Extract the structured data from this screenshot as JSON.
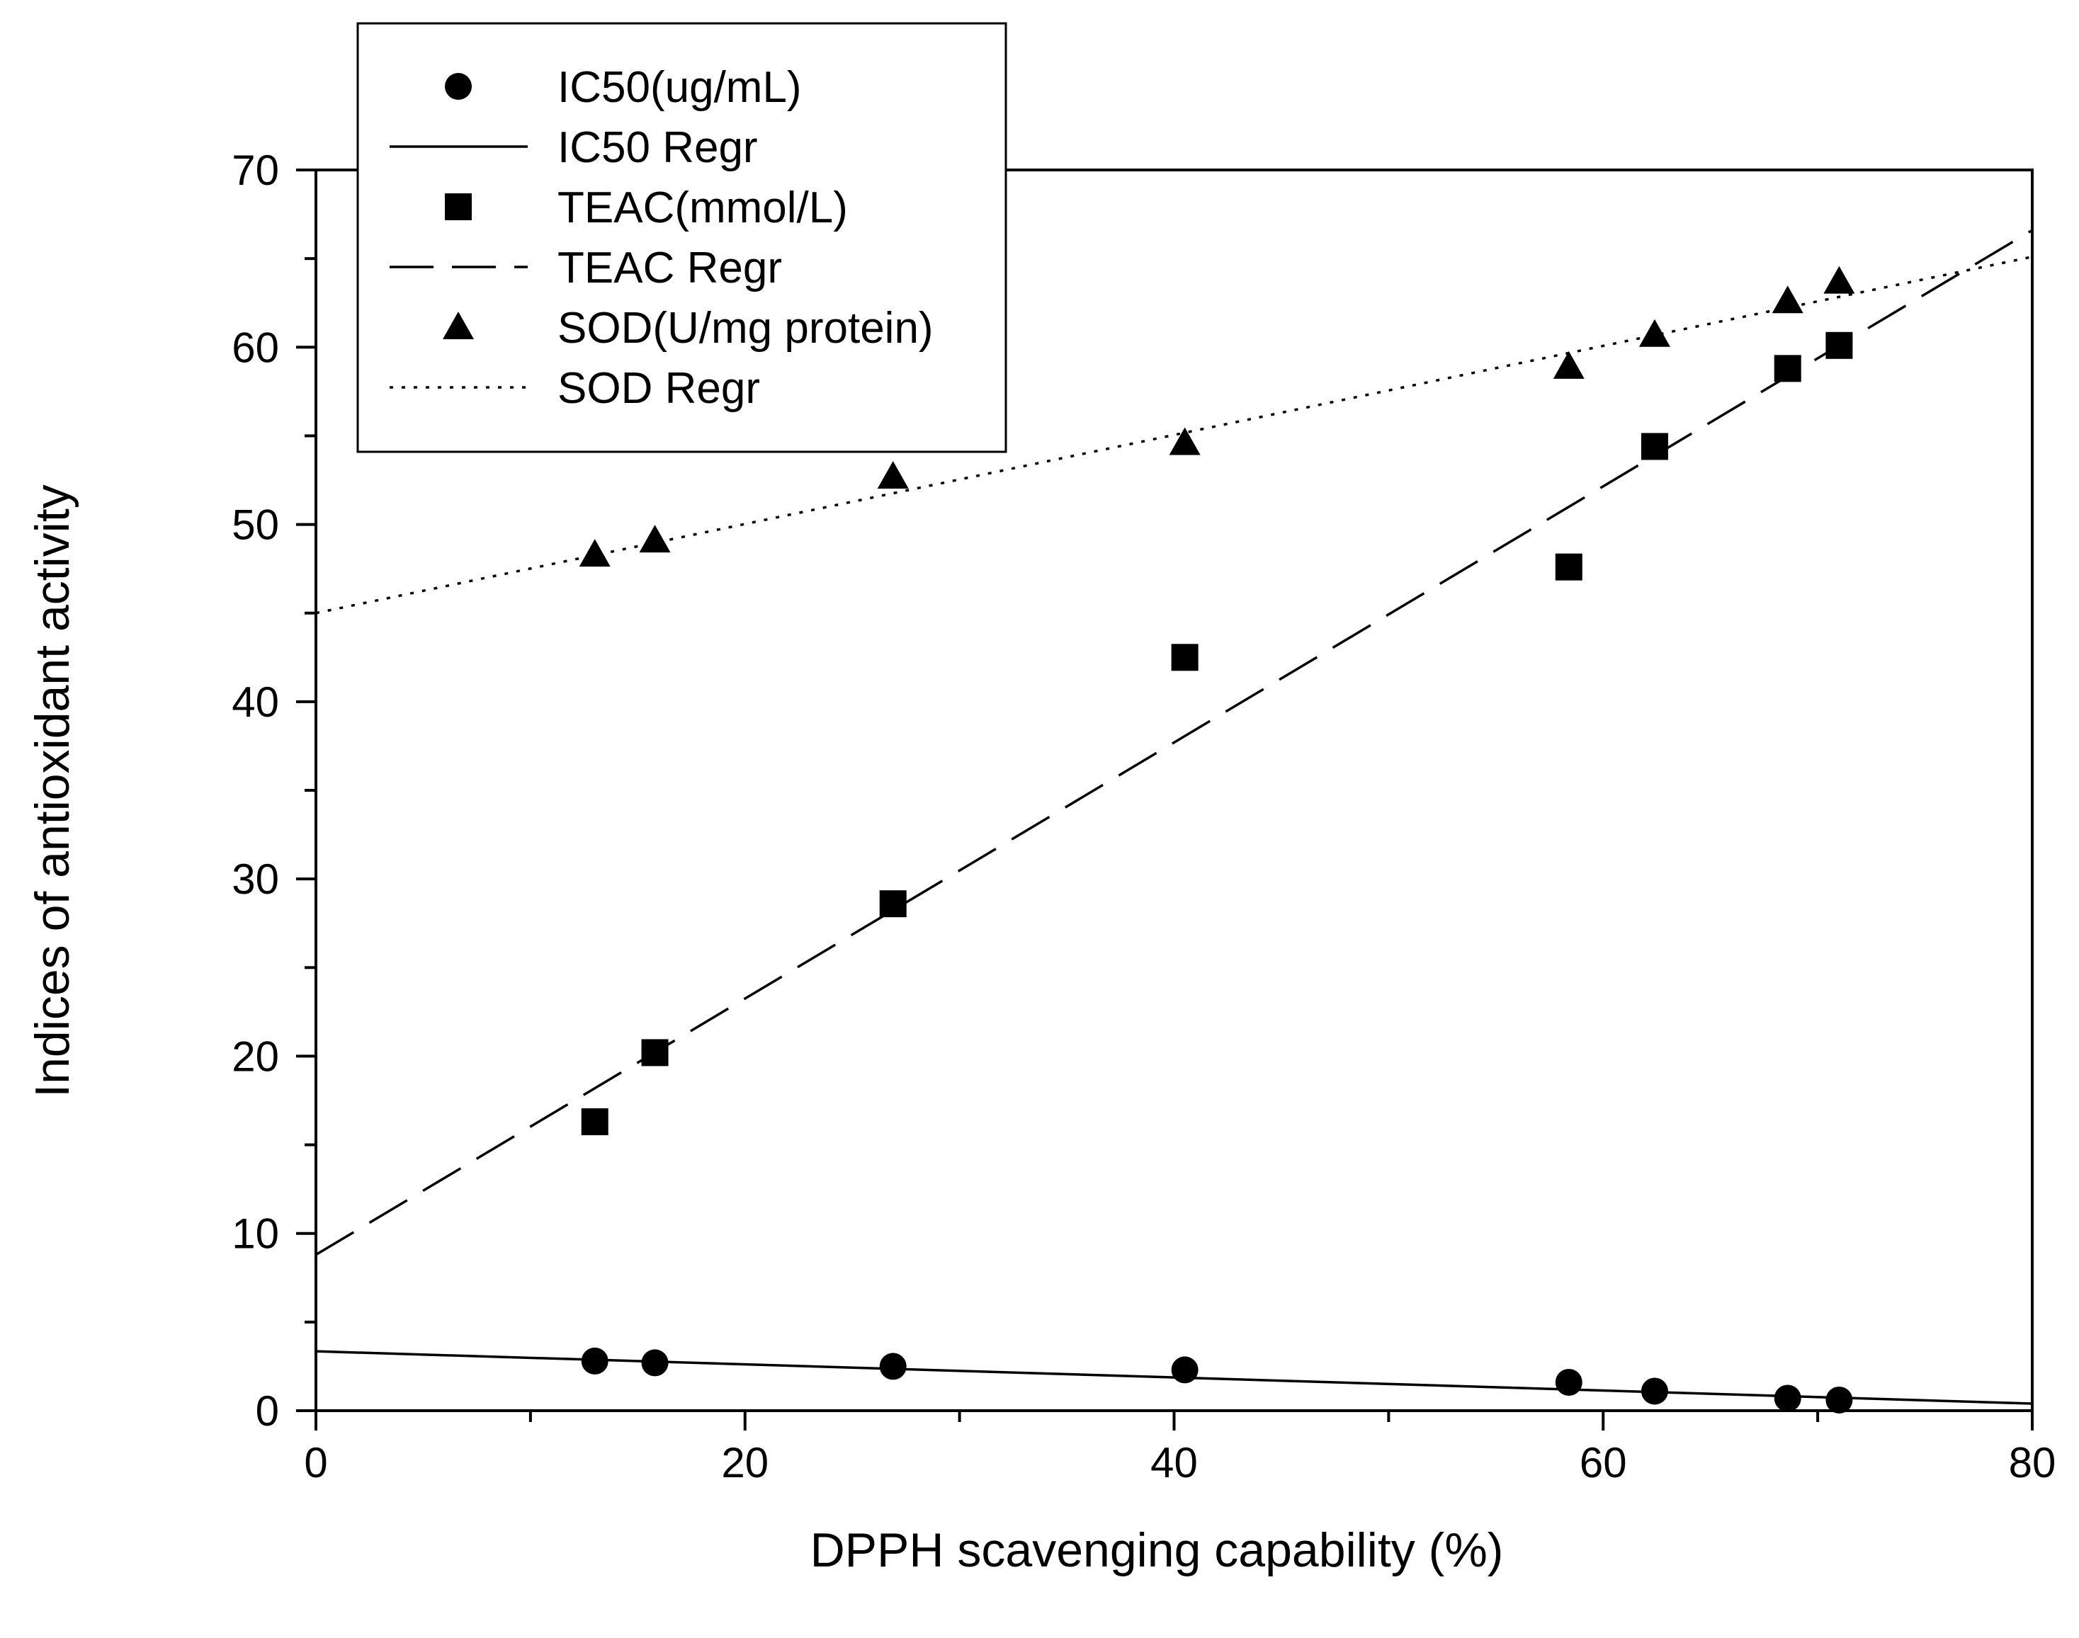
{
  "chart_data": {
    "type": "scatter",
    "title": "",
    "xlabel": "DPPH scavenging capability (%)",
    "ylabel": "Indices of antioxidant activity",
    "xlim": [
      0,
      80
    ],
    "ylim": [
      0,
      70
    ],
    "x_ticks": [
      0,
      20,
      40,
      60,
      80
    ],
    "x_tick_labels": [
      "0",
      "20",
      "40",
      "60",
      "80"
    ],
    "y_ticks": [
      0,
      10,
      20,
      30,
      40,
      50,
      60,
      70
    ],
    "y_tick_labels": [
      "0",
      "10",
      "20",
      "30",
      "40",
      "50",
      "60",
      "70"
    ],
    "grid": false,
    "legend_position": "top-left",
    "x": [
      13,
      15.8,
      26.9,
      40.5,
      58.4,
      62.4,
      68.6,
      71
    ],
    "series": [
      {
        "name": "IC50(ug/mL)",
        "marker": "circle",
        "values": [
          2.8,
          2.7,
          2.5,
          2.3,
          1.6,
          1.1,
          0.7,
          0.6
        ],
        "regression": {
          "name": "IC50 Regr",
          "style": "solid",
          "x": [
            0,
            80
          ],
          "y": [
            3.35,
            0.4
          ]
        }
      },
      {
        "name": "TEAC(mmol/L)",
        "marker": "square",
        "values": [
          16.3,
          20.2,
          28.6,
          42.5,
          47.6,
          54.4,
          58.8,
          60.1
        ],
        "regression": {
          "name": "TEAC Regr",
          "style": "dashed",
          "x": [
            0,
            80
          ],
          "y": [
            8.8,
            66.6
          ]
        }
      },
      {
        "name": "SOD(U/mg protein)",
        "marker": "triangle",
        "values": [
          48.3,
          49.1,
          52.7,
          54.6,
          58.9,
          60.7,
          62.6,
          63.7
        ],
        "regression": {
          "name": "SOD Regr",
          "style": "dotted",
          "x": [
            0,
            80
          ],
          "y": [
            45,
            65.1
          ]
        }
      }
    ]
  }
}
